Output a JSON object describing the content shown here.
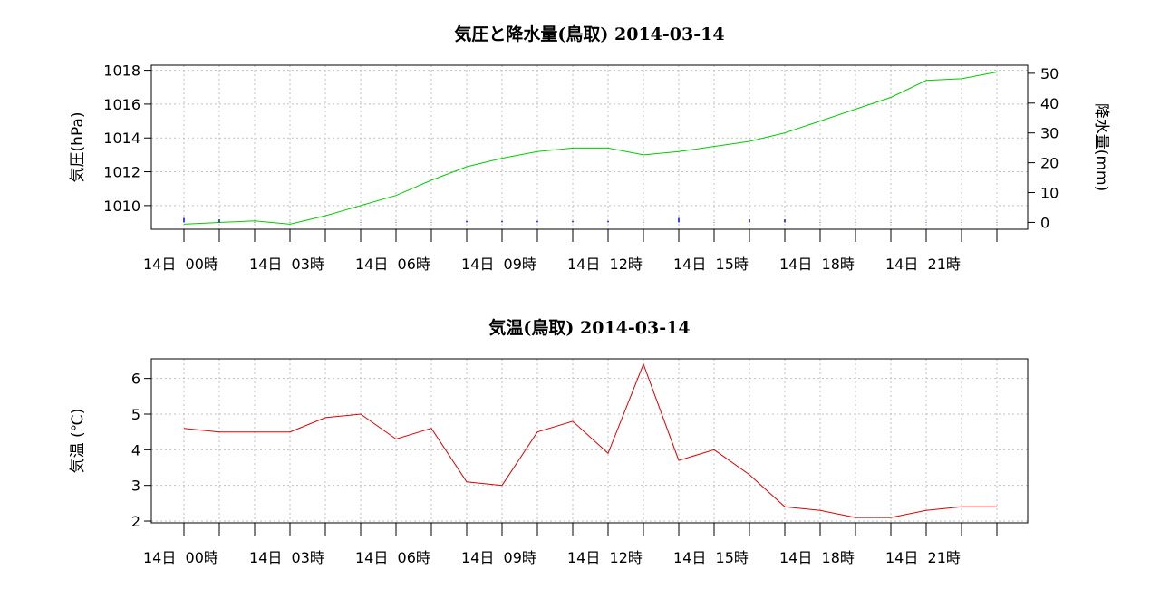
{
  "chart_data": [
    {
      "type": "line",
      "title": "気圧と降水量(鳥取) 2014-03-14",
      "ylabel": "気圧(hPa)",
      "y2label": "降水量(mm)",
      "ylim": [
        1008.6,
        1018.3
      ],
      "yticks": [
        1010,
        1012,
        1014,
        1016,
        1018
      ],
      "y2lim": [
        -2.3,
        52.7
      ],
      "y2ticks": [
        0,
        10,
        20,
        30,
        40,
        50
      ],
      "grid": true,
      "x_count": 24,
      "x_tick_labels": [
        {
          "index": 0,
          "label": "14日  00時"
        },
        {
          "index": 3,
          "label": "14日  03時"
        },
        {
          "index": 6,
          "label": "14日  06時"
        },
        {
          "index": 9,
          "label": "14日  09時"
        },
        {
          "index": 12,
          "label": "14日  12時"
        },
        {
          "index": 15,
          "label": "14日  15時"
        },
        {
          "index": 18,
          "label": "14日  18時"
        },
        {
          "index": 21,
          "label": "14日  21時"
        }
      ],
      "series": [
        {
          "axis": "left",
          "color": "#00cc00",
          "values": [
            1008.9,
            1009.0,
            1009.1,
            1008.9,
            1009.4,
            1010.0,
            1010.6,
            1011.5,
            1012.3,
            1012.8,
            1013.2,
            1013.4,
            1013.4,
            1013.0,
            1013.2,
            1013.5,
            1013.8,
            1014.3,
            1015.0,
            1015.7,
            1016.4,
            1017.4,
            1017.5,
            1017.9
          ]
        },
        {
          "axis": "right",
          "color": "#0000ff",
          "values": [
            1.5,
            1.0,
            0,
            0,
            0,
            0,
            0,
            0,
            0.5,
            0.5,
            0.5,
            0.5,
            0.5,
            0,
            1.5,
            0,
            1.0,
            1.0,
            0,
            0,
            0,
            0,
            0,
            0
          ]
        }
      ]
    },
    {
      "type": "line",
      "title": "気温(鳥取) 2014-03-14",
      "ylabel": "気温 (℃)",
      "ylim": [
        1.95,
        6.55
      ],
      "yticks": [
        2,
        3,
        4,
        5,
        6
      ],
      "grid": true,
      "x_count": 24,
      "x_tick_labels": [
        {
          "index": 0,
          "label": "14日  00時"
        },
        {
          "index": 3,
          "label": "14日  03時"
        },
        {
          "index": 6,
          "label": "14日  06時"
        },
        {
          "index": 9,
          "label": "14日  09時"
        },
        {
          "index": 12,
          "label": "14日  12時"
        },
        {
          "index": 15,
          "label": "14日  15時"
        },
        {
          "index": 18,
          "label": "14日  18時"
        },
        {
          "index": 21,
          "label": "14日  21時"
        }
      ],
      "series": [
        {
          "axis": "left",
          "color": "#dd0000",
          "values": [
            4.6,
            4.5,
            4.5,
            4.5,
            4.9,
            5.0,
            4.3,
            4.6,
            3.1,
            3.0,
            4.5,
            4.8,
            3.9,
            6.4,
            3.7,
            4.0,
            3.3,
            2.4,
            2.3,
            2.1,
            2.1,
            2.3,
            2.4,
            2.4
          ]
        }
      ]
    }
  ]
}
